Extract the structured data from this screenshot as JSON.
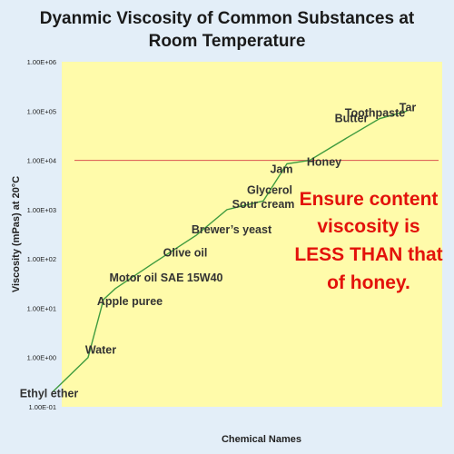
{
  "chart_data": {
    "type": "line",
    "title_lines": [
      "Dyanmic Viscosity of Common Substances at",
      "Room Temperature"
    ],
    "xlabel": "Chemical Names",
    "ylabel": "Viscosity (mPas) at 20°C",
    "yscale": "log",
    "ylim": [
      0.1,
      1000000
    ],
    "yticks": [
      "1.00E-01",
      "1.00E+00",
      "1.00E+01",
      "1.00E+02",
      "1.00E+03",
      "1.00E+04",
      "1.00E+05",
      "1.00E+06"
    ],
    "grid": false,
    "series": [
      {
        "color": "#3f9b3f",
        "points": [
          {
            "label": "Ethyl ether",
            "y": 0.2
          },
          {
            "label": "Water",
            "y": 1
          },
          {
            "label": "Apple puree",
            "y": 15
          },
          {
            "label": "Motor oil SAE 15W40",
            "y": 25
          },
          {
            "label": "Olive oil",
            "y": 80
          },
          {
            "label": "Brewer’s yeast",
            "y": 300
          },
          {
            "label": "Sour cream",
            "y": 1000
          },
          {
            "label": "Glycerol",
            "y": 1500
          },
          {
            "label": "Jam",
            "y": 8500
          },
          {
            "label": "Honey",
            "y": 10000
          },
          {
            "label": "Butter",
            "y": 30000
          },
          {
            "label": "Toothpaste",
            "y": 70000
          },
          {
            "label": "Tar",
            "y": 100000
          }
        ]
      }
    ],
    "reference_line": {
      "y": 10000,
      "color": "#d9534f"
    },
    "annotation": {
      "lines": [
        "Ensure content",
        "viscosity is",
        "LESS THAN that",
        "of honey."
      ],
      "color": "#e3120b"
    },
    "plot_background": "#fffbaa",
    "page_background": "#e3eef8"
  }
}
